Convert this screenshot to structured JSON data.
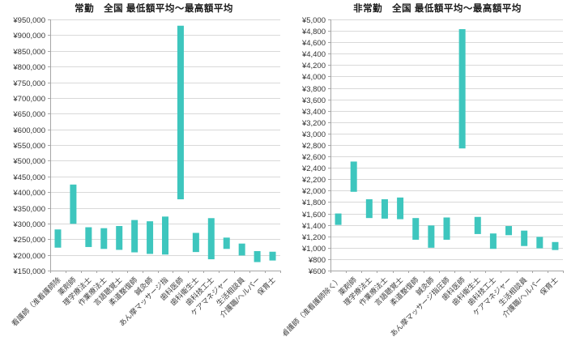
{
  "page": {
    "background": "#ffffff"
  },
  "chart_data": [
    {
      "type": "bar",
      "subtype": "floating-range-bar",
      "title": "常勤　全国 最低額平均〜最高額平均",
      "categories": [
        "看護師（准看護師除",
        "薬剤師",
        "理学療法士",
        "作業療法士",
        "言語聴覚士",
        "柔道整復師",
        "鍼灸師",
        "あん摩マッサージ指",
        "歯科医師",
        "歯科衛生士",
        "歯科技工士",
        "ケアマネジャー",
        "生活相談員",
        "介護職/ヘルパー",
        "保育士"
      ],
      "series": [
        {
          "name": "最低額平均",
          "values": [
            223000,
            299000,
            225000,
            219000,
            216000,
            208000,
            203000,
            201000,
            377000,
            209000,
            186000,
            219000,
            198000,
            177000,
            182000
          ]
        },
        {
          "name": "最高額平均",
          "values": [
            281000,
            424000,
            288000,
            285000,
            292000,
            311000,
            307000,
            322000,
            930000,
            270000,
            317000,
            255000,
            236000,
            212000,
            210000
          ]
        }
      ],
      "xlabel": "",
      "ylabel": "",
      "ylim": [
        150000,
        950000
      ],
      "ytick_step": 50000,
      "ytick_prefix": "¥",
      "grid": true,
      "legend": "none",
      "bar_color": "#3EC6BE"
    },
    {
      "type": "bar",
      "subtype": "floating-range-bar",
      "title": "非常勤　全国 最低額平均〜最高額平均",
      "categories": [
        "看護師（准看護師除く）",
        "薬剤師",
        "理学療法士",
        "作業療法士",
        "言語聴覚士",
        "柔道整復師",
        "鍼灸師",
        "あん摩マッサージ指圧師",
        "歯科医師",
        "歯科衛生士",
        "歯科技工士",
        "ケアマネジャー",
        "生活相談員",
        "介護職/ヘルパー",
        "保育士"
      ],
      "series": [
        {
          "name": "最低額平均",
          "values": [
            1400,
            1980,
            1520,
            1510,
            1500,
            1140,
            1000,
            1140,
            2740,
            1240,
            980,
            1220,
            1030,
            990,
            960
          ]
        },
        {
          "name": "最高額平均",
          "values": [
            1600,
            2510,
            1850,
            1850,
            1880,
            1520,
            1390,
            1530,
            4830,
            1540,
            1250,
            1380,
            1300,
            1190,
            1100
          ]
        }
      ],
      "xlabel": "",
      "ylabel": "",
      "ylim": [
        600,
        5000
      ],
      "ytick_step": 200,
      "ytick_prefix": "¥",
      "grid": true,
      "legend": "none",
      "bar_color": "#3EC6BE"
    }
  ]
}
